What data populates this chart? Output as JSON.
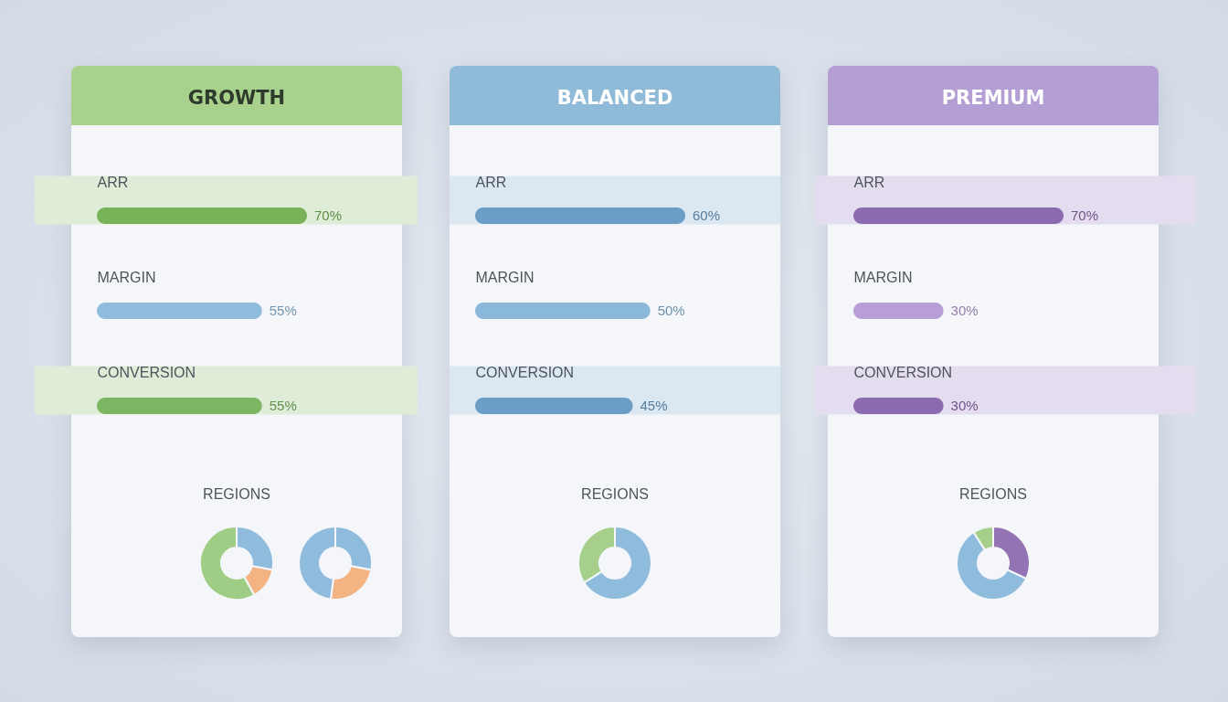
{
  "chart_data": [
    {
      "type": "bar",
      "title": "GROWTH",
      "orientation": "horizontal",
      "categories": [
        "ARR",
        "MARGIN",
        "CONVERSION"
      ],
      "values": [
        70,
        55,
        55
      ],
      "colors": [
        "#78b35a",
        "#8fbcdd",
        "#7cb662"
      ],
      "value_labels": [
        "70%",
        "55%",
        "55%"
      ],
      "bands": [
        {
          "axis": "y",
          "from": "ARR",
          "to": "ARR",
          "color": "#dfecd7"
        },
        {
          "axis": "y",
          "from": "CONVERSION",
          "to": "CONVERSION",
          "color": "#dfecd7"
        }
      ]
    },
    {
      "type": "donut",
      "title": "REGIONS",
      "categories": [
        null,
        null,
        null
      ],
      "values": [
        28,
        14,
        58
      ],
      "colors": [
        "#8fbcdd",
        "#f3b382",
        "#9fcd86"
      ]
    },
    {
      "type": "donut",
      "categories": [
        null,
        null,
        null
      ],
      "values": [
        28,
        24,
        48
      ],
      "colors": [
        "#8fbcdd",
        "#f3b382",
        "#8fbcdd"
      ]
    },
    {
      "type": "bar",
      "title": "BALANCED",
      "orientation": "horizontal",
      "categories": [
        "ARR",
        "MARGIN",
        "CONVERSION"
      ],
      "values": [
        60,
        50,
        45
      ],
      "colors": [
        "#6a9ec6",
        "#8ab8da",
        "#6a9ec6"
      ],
      "value_labels": [
        "60%",
        "50%",
        "45%"
      ],
      "bands": [
        {
          "axis": "y",
          "from": "ARR",
          "to": "ARR",
          "color": "#dbe7f1"
        },
        {
          "axis": "y",
          "from": "CONVERSION",
          "to": "CONVERSION",
          "color": "#dbe7f1"
        }
      ]
    },
    {
      "type": "donut",
      "title": "REGIONS",
      "categories": [
        null,
        null
      ],
      "values": [
        66,
        34
      ],
      "colors": [
        "#8fbcdd",
        "#a6cf8c"
      ]
    },
    {
      "type": "bar",
      "title": "PREMIUM",
      "orientation": "horizontal",
      "categories": [
        "ARR",
        "MARGIN",
        "CONVERSION"
      ],
      "values": [
        70,
        30,
        30
      ],
      "colors": [
        "#8b6aaf",
        "#b79ed6",
        "#8b6aaf"
      ],
      "value_labels": [
        "70%",
        "30%",
        "30%"
      ],
      "bands": [
        {
          "axis": "y",
          "from": "ARR",
          "to": "ARR",
          "color": "#e3ddef"
        },
        {
          "axis": "y",
          "from": "CONVERSION",
          "to": "CONVERSION",
          "color": "#e3ddef"
        }
      ]
    },
    {
      "type": "donut",
      "title": "REGIONS",
      "categories": [
        null,
        null,
        null
      ],
      "values": [
        32,
        59,
        9
      ],
      "colors": [
        "#9373b4",
        "#8fbcdd",
        "#a6cf8c"
      ]
    }
  ]
}
